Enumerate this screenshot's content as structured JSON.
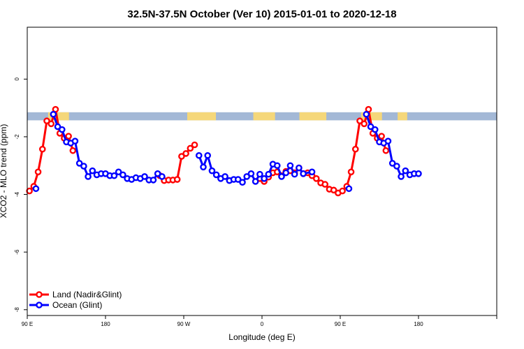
{
  "chart_data": {
    "type": "line",
    "title": "32.5N-37.5N October (Ver 10)   2015-01-01 to 2020-12-18",
    "xlabel": "Longitude (deg E)",
    "ylabel": "XCO2 - MLO trend (ppm)",
    "xlim": [
      90,
      630
    ],
    "ylim": [
      -8.2,
      1.8
    ],
    "x_ticks": [
      {
        "value": 90,
        "label": "90 E"
      },
      {
        "value": 180,
        "label": "180"
      },
      {
        "value": 270,
        "label": "90 W"
      },
      {
        "value": 360,
        "label": "0"
      },
      {
        "value": 450,
        "label": "90 E"
      },
      {
        "value": 540,
        "label": "180"
      }
    ],
    "y_ticks": [
      {
        "value": 0,
        "label": "0"
      },
      {
        "value": -2,
        "label": "-2"
      },
      {
        "value": -4,
        "label": "-4"
      },
      {
        "value": -6,
        "label": "-6"
      },
      {
        "value": -8,
        "label": "-8"
      }
    ],
    "land_ocean_band": {
      "y_top": -1.15,
      "y_bottom": -1.43,
      "ocean_color": "#a3b8d6",
      "land_color": "#f5d77a",
      "land_spans": [
        [
          114,
          138
        ],
        [
          274,
          307
        ],
        [
          350,
          375
        ],
        [
          403,
          434
        ],
        [
          474,
          498
        ],
        [
          516,
          527
        ]
      ]
    },
    "series": [
      {
        "name": "Land (Nadir&Glint)",
        "color": "#ff0000",
        "points": [
          [
            92.5,
            -3.88
          ],
          [
            97.5,
            -3.72
          ],
          [
            102.5,
            -3.22
          ],
          [
            107.5,
            -2.43
          ],
          [
            112.5,
            -1.45
          ],
          [
            117.5,
            -1.55
          ],
          [
            122.5,
            -1.05
          ],
          [
            127.5,
            -1.88
          ],
          [
            132.5,
            -2.05
          ],
          [
            137.5,
            -1.98
          ],
          [
            142.5,
            -2.48
          ],
          [
            242.5,
            -3.35
          ],
          [
            247.5,
            -3.52
          ],
          [
            252.5,
            -3.5
          ],
          [
            257.5,
            -3.5
          ],
          [
            262.5,
            -3.48
          ],
          [
            267.5,
            -2.68
          ],
          [
            272.5,
            -2.58
          ],
          [
            277.5,
            -2.4
          ],
          [
            282.5,
            -2.28
          ],
          [
            357.5,
            -3.45
          ],
          [
            362.5,
            -3.55
          ],
          [
            367.5,
            -3.4
          ],
          [
            372.5,
            -3.25
          ],
          [
            377.5,
            -3.22
          ],
          [
            382.5,
            -3.35
          ],
          [
            387.5,
            -3.2
          ],
          [
            392.5,
            -3.18
          ],
          [
            397.5,
            -3.25
          ],
          [
            402.5,
            -3.08
          ],
          [
            407.5,
            -3.28
          ],
          [
            412.5,
            -3.25
          ],
          [
            417.5,
            -3.35
          ],
          [
            422.5,
            -3.45
          ],
          [
            427.5,
            -3.6
          ],
          [
            432.5,
            -3.65
          ],
          [
            437.5,
            -3.82
          ],
          [
            442.5,
            -3.85
          ],
          [
            447.5,
            -3.95
          ],
          [
            452.5,
            -3.88
          ],
          [
            457.5,
            -3.72
          ],
          [
            462.5,
            -3.22
          ],
          [
            467.5,
            -2.43
          ],
          [
            472.5,
            -1.45
          ],
          [
            477.5,
            -1.55
          ],
          [
            482.5,
            -1.05
          ],
          [
            487.5,
            -1.88
          ],
          [
            492.5,
            -2.05
          ],
          [
            497.5,
            -1.98
          ],
          [
            502.5,
            -2.48
          ]
        ]
      },
      {
        "name": "Ocean (Glint)",
        "color": "#0000ff",
        "points": [
          [
            100,
            -3.8
          ],
          [
            120,
            -1.22
          ],
          [
            125,
            -1.65
          ],
          [
            130,
            -1.75
          ],
          [
            135,
            -2.18
          ],
          [
            140,
            -2.22
          ],
          [
            145,
            -2.15
          ],
          [
            150,
            -2.92
          ],
          [
            155,
            -3.02
          ],
          [
            160,
            -3.38
          ],
          [
            165,
            -3.18
          ],
          [
            170,
            -3.32
          ],
          [
            175,
            -3.28
          ],
          [
            180,
            -3.28
          ],
          [
            185,
            -3.35
          ],
          [
            190,
            -3.35
          ],
          [
            195,
            -3.22
          ],
          [
            200,
            -3.32
          ],
          [
            205,
            -3.45
          ],
          [
            210,
            -3.48
          ],
          [
            215,
            -3.42
          ],
          [
            220,
            -3.45
          ],
          [
            225,
            -3.38
          ],
          [
            230,
            -3.5
          ],
          [
            235,
            -3.5
          ],
          [
            240,
            -3.28
          ],
          [
            245,
            -3.38
          ],
          [
            287.5,
            -2.65
          ],
          [
            292.5,
            -3.05
          ],
          [
            297.5,
            -2.65
          ],
          [
            302.5,
            -3.18
          ],
          [
            307.5,
            -3.32
          ],
          [
            312.5,
            -3.45
          ],
          [
            317.5,
            -3.38
          ],
          [
            322.5,
            -3.52
          ],
          [
            327.5,
            -3.48
          ],
          [
            332.5,
            -3.48
          ],
          [
            337.5,
            -3.58
          ],
          [
            342.5,
            -3.38
          ],
          [
            347.5,
            -3.28
          ],
          [
            352.5,
            -3.55
          ],
          [
            357.5,
            -3.3
          ],
          [
            362.5,
            -3.45
          ],
          [
            367.5,
            -3.3
          ],
          [
            372.5,
            -2.95
          ],
          [
            377.5,
            -3.0
          ],
          [
            382.5,
            -3.38
          ],
          [
            387.5,
            -3.25
          ],
          [
            392.5,
            -3.0
          ],
          [
            397.5,
            -3.3
          ],
          [
            402.5,
            -3.08
          ],
          [
            407.5,
            -3.28
          ],
          [
            417.5,
            -3.22
          ],
          [
            460,
            -3.8
          ],
          [
            480,
            -1.22
          ],
          [
            485,
            -1.65
          ],
          [
            490,
            -1.75
          ],
          [
            495,
            -2.18
          ],
          [
            500,
            -2.22
          ],
          [
            505,
            -2.15
          ],
          [
            510,
            -2.92
          ],
          [
            515,
            -3.02
          ],
          [
            520,
            -3.38
          ],
          [
            525,
            -3.18
          ],
          [
            530,
            -3.32
          ],
          [
            535,
            -3.28
          ],
          [
            540,
            -3.28
          ]
        ]
      }
    ],
    "legend": {
      "position": "bottom-left",
      "entries": [
        "Land (Nadir&Glint)",
        "Ocean (Glint)"
      ]
    }
  }
}
